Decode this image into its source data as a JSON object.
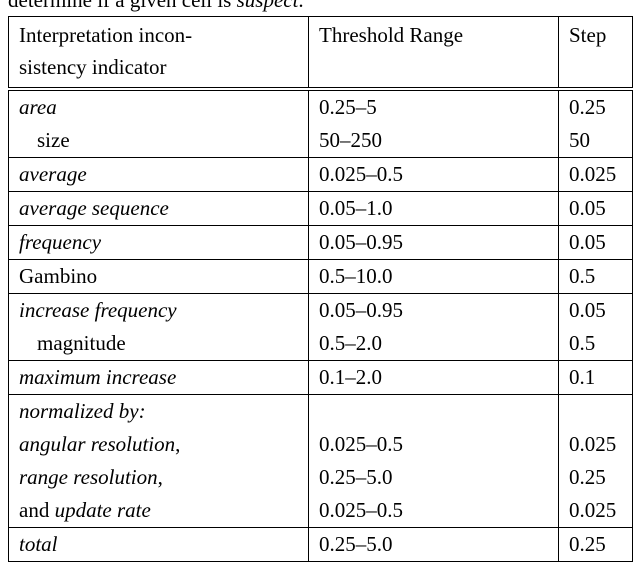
{
  "caption": {
    "before": "determine if a given cell is ",
    "emphasis": "suspect",
    "after": "."
  },
  "table": {
    "headers": [
      {
        "lines": [
          "Interpretation incon-",
          "sistency indicator"
        ]
      },
      {
        "lines": [
          "Threshold Range"
        ]
      },
      {
        "lines": [
          "Step"
        ]
      }
    ],
    "groups": [
      {
        "rows": [
          {
            "indicator": [
              {
                "text": "area",
                "italic": true
              }
            ],
            "range": "0.25–5",
            "step": "0.25"
          },
          {
            "indicator": [
              {
                "text": "size",
                "italic": false
              }
            ],
            "indent": true,
            "range": "50–250",
            "step": "50"
          }
        ]
      },
      {
        "rows": [
          {
            "indicator": [
              {
                "text": "average",
                "italic": true
              }
            ],
            "range": "0.025–0.5",
            "step": "0.025"
          }
        ]
      },
      {
        "rows": [
          {
            "indicator": [
              {
                "text": "average sequence",
                "italic": true
              }
            ],
            "range": "0.05–1.0",
            "step": "0.05"
          }
        ]
      },
      {
        "rows": [
          {
            "indicator": [
              {
                "text": "frequency",
                "italic": true
              }
            ],
            "range": "0.05–0.95",
            "step": "0.05"
          }
        ]
      },
      {
        "rows": [
          {
            "indicator": [
              {
                "text": "Gambino",
                "italic": false
              }
            ],
            "range": "0.5–10.0",
            "step": "0.5"
          }
        ]
      },
      {
        "rows": [
          {
            "indicator": [
              {
                "text": "increase frequency",
                "italic": true
              }
            ],
            "range": "0.05–0.95",
            "step": "0.05"
          },
          {
            "indicator": [
              {
                "text": "magnitude",
                "italic": false
              }
            ],
            "indent": true,
            "range": "0.5–2.0",
            "step": "0.5"
          }
        ]
      },
      {
        "rows": [
          {
            "indicator": [
              {
                "text": "maximum increase",
                "italic": true
              }
            ],
            "range": "0.1–2.0",
            "step": "0.1"
          }
        ]
      },
      {
        "rows": [
          {
            "indicator": [
              {
                "text": "normalized by:",
                "italic": true
              }
            ],
            "range": null,
            "step": null
          },
          {
            "indicator": [
              {
                "text": "angular resolution",
                "italic": true
              },
              {
                "text": ",",
                "italic": false
              }
            ],
            "range": "0.025–0.5",
            "step": "0.025"
          },
          {
            "indicator": [
              {
                "text": "range resolution",
                "italic": true
              },
              {
                "text": ",",
                "italic": false
              }
            ],
            "range": "0.25–5.0",
            "step": "0.25"
          },
          {
            "indicator": [
              {
                "text": "and ",
                "italic": false
              },
              {
                "text": "update rate",
                "italic": true
              }
            ],
            "range": "0.025–0.5",
            "step": "0.025"
          }
        ]
      },
      {
        "rows": [
          {
            "indicator": [
              {
                "text": "total",
                "italic": true
              }
            ],
            "range": "0.25–5.0",
            "step": "0.25"
          }
        ]
      }
    ]
  }
}
